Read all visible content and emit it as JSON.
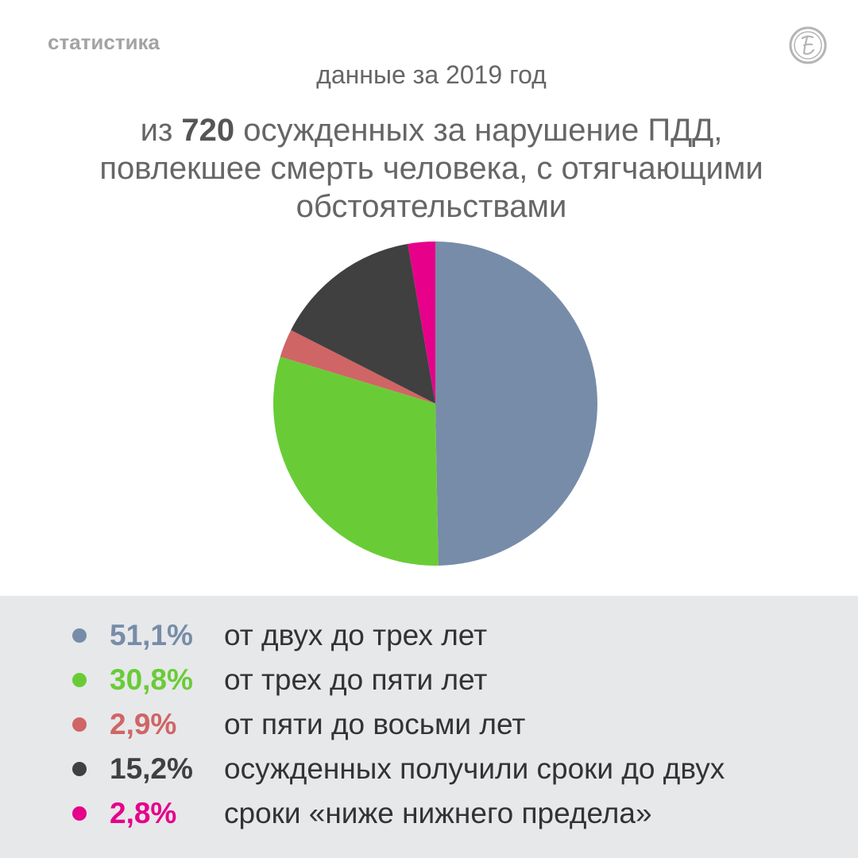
{
  "header": {
    "section": "статистика",
    "period": "данные за 2019 год",
    "headline_pre": "из ",
    "headline_num": "720",
    "headline_line1_rest": " осужденных за нарушение ПДД,",
    "headline_line2": "повлекшее смерть человека, с отягчающими",
    "headline_line3": "обстоятельствами"
  },
  "chart_data": {
    "type": "pie",
    "title": "",
    "unit": "%",
    "slices": [
      {
        "label": "от двух до трех лет",
        "value": 51.1,
        "display": "51,1%",
        "color": "#778ca8"
      },
      {
        "label": "от трех до пяти лет",
        "value": 30.8,
        "display": "30,8%",
        "color": "#69cc36"
      },
      {
        "label": "от пяти до восьми лет",
        "value": 2.9,
        "display": "2,9%",
        "color": "#d06565"
      },
      {
        "label": "осужденных получили сроки до двух",
        "value": 15.2,
        "display": "15,2%",
        "color": "#404040"
      },
      {
        "label": "сроки «ниже нижнего предела»",
        "value": 2.8,
        "display": "2,8%",
        "color": "#e6008a"
      }
    ],
    "start_angle": "12 o'clock",
    "direction": "clockwise",
    "legend_position": "bottom"
  }
}
